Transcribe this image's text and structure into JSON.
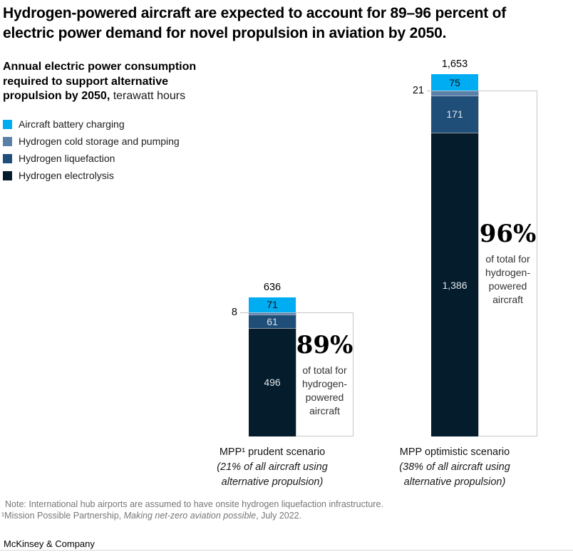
{
  "title": "Hydrogen-powered aircraft are expected to account for 89–96 percent of\nelectric power demand for novel propulsion in aviation by 2050.",
  "subtitle": {
    "bold": "Annual electric power consumption\nrequired to support alternative\npropulsion by 2050,",
    "normal": " terawatt hours"
  },
  "colors": {
    "battery_charging": "#00ACF2",
    "cold_storage": "#5B80A8",
    "liquefaction": "#1F4E79",
    "electrolysis": "#051C2C",
    "box_border": "#c6c6c6",
    "light_label": "#dfe4e9",
    "dark_label": "#101010"
  },
  "legend": {
    "items": [
      {
        "label": "Aircraft battery charging",
        "color": "#00ACF2"
      },
      {
        "label": "Hydrogen cold storage and pumping",
        "color": "#5B80A8"
      },
      {
        "label": "Hydrogen liquefaction",
        "color": "#1F4E79"
      },
      {
        "label": "Hydrogen electrolysis",
        "color": "#051C2C"
      }
    ]
  },
  "chart_data": {
    "type": "bar",
    "stacked": true,
    "grid": false,
    "legend_position": "top-left",
    "unit": "terawatt hours",
    "ylim": [
      0,
      1653
    ],
    "categories": [
      "MPP¹ prudent scenario",
      "MPP optimistic scenario"
    ],
    "category_subtitles": [
      "(21% of all aircraft using\nalternative propulsion)",
      "(38% of all aircraft using\nalternative propulsion)"
    ],
    "series": [
      {
        "name": "Aircraft battery charging",
        "color": "#00ACF2",
        "values": [
          71,
          75
        ],
        "label_position": "inside",
        "label_style": "dark"
      },
      {
        "name": "Hydrogen cold storage and pumping",
        "color": "#5B80A8",
        "values": [
          8,
          21
        ],
        "label_position": "tick",
        "label_style": "dark"
      },
      {
        "name": "Hydrogen liquefaction",
        "color": "#1F4E79",
        "values": [
          61,
          171
        ],
        "label_position": "inside",
        "label_style": "light"
      },
      {
        "name": "Hydrogen electrolysis",
        "color": "#051C2C",
        "values": [
          496,
          1386
        ],
        "label_position": "inside",
        "label_style": "light"
      }
    ],
    "totals": [
      "636",
      "1,653"
    ],
    "value_labels": [
      [
        "71",
        "8",
        "61",
        "496"
      ],
      [
        "75",
        "21",
        "171",
        "1,386"
      ]
    ],
    "annotations": [
      {
        "percent": "89%",
        "caption": "of total for\nhydrogen-\npowered\naircraft"
      },
      {
        "percent": "96%",
        "caption": "of total for\nhydrogen-\npowered\naircraft"
      }
    ]
  },
  "footnotes": {
    "note": "Note: International hub airports are assumed to have onsite hydrogen liquefaction infrastructure.",
    "source_prefix": "¹Mission Possible Partnership, ",
    "source_italic": "Making net-zero aviation possible",
    "source_suffix": ", July 2022."
  },
  "brand": "McKinsey & Company"
}
